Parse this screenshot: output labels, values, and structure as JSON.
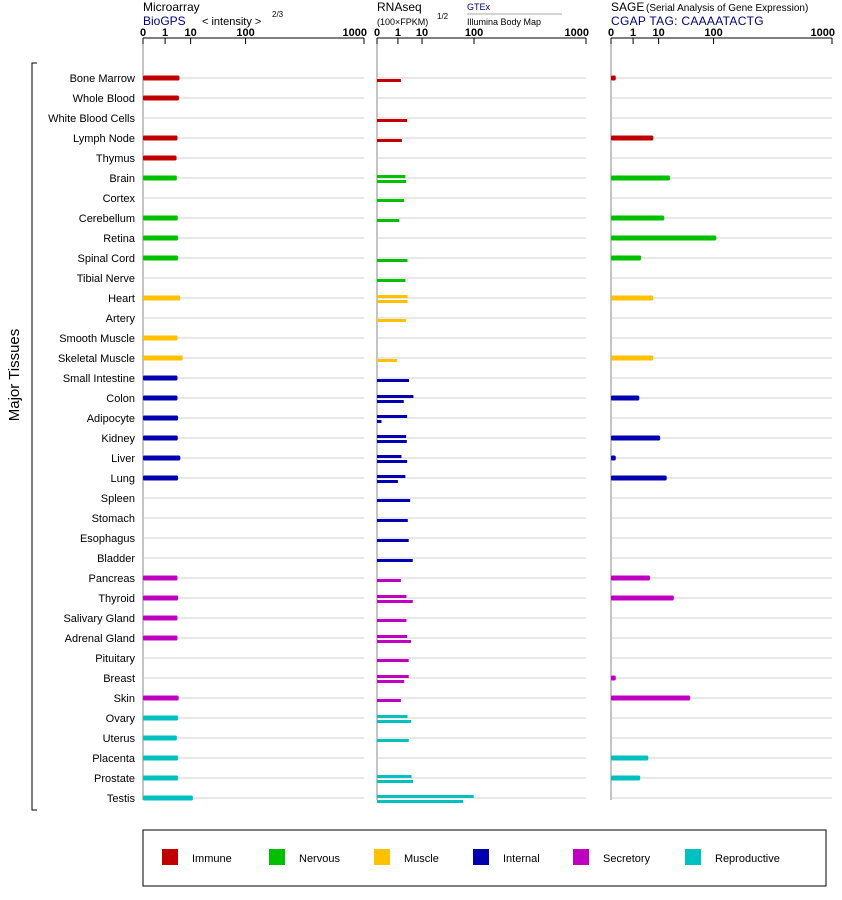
{
  "panels": {
    "microarray": {
      "title": "Microarray",
      "link": "BioGPS",
      "subtitle": "< intensity >",
      "subtitle_exp": "2/3"
    },
    "rnaseq": {
      "title": "RNAseq",
      "unit": "(100×FPKM)",
      "unit_exp": "1/2",
      "source_top": "GTEx",
      "source_bottom": "Illumina Body Map"
    },
    "sage": {
      "title": "SAGE",
      "title_note": "(Serial Analysis of Gene Expression)",
      "tag": "CGAP TAG: CAAAATACTG"
    }
  },
  "y_axis_label": "Major Tissues",
  "tick_labels": [
    "0",
    "1",
    "10",
    "100",
    "1000"
  ],
  "colors": {
    "Immune": "#c00000",
    "Nervous": "#00c000",
    "Muscle": "#ffc000",
    "Internal": "#0000b0",
    "Secretory": "#c000c0",
    "Reproductive": "#00c0c0",
    "row_line": "#d0d0d0"
  },
  "legend": [
    {
      "label": "Immune",
      "color": "#c00000"
    },
    {
      "label": "Nervous",
      "color": "#00c000"
    },
    {
      "label": "Muscle",
      "color": "#ffc000"
    },
    {
      "label": "Internal",
      "color": "#0000b0"
    },
    {
      "label": "Secretory",
      "color": "#c000c0"
    },
    {
      "label": "Reproductive",
      "color": "#00c0c0"
    }
  ],
  "chart_data": {
    "type": "bar",
    "orientation": "horizontal",
    "axis_scale": "power 1/3 (cube-root) axis",
    "xlim": [
      0,
      1000
    ],
    "x_ticks": [
      0,
      1,
      10,
      100,
      1000
    ],
    "categories": [
      "Bone Marrow",
      "Whole Blood",
      "White Blood Cells",
      "Lymph Node",
      "Thymus",
      "Brain",
      "Cortex",
      "Cerebellum",
      "Retina",
      "Spinal Cord",
      "Tibial Nerve",
      "Heart",
      "Artery",
      "Smooth Muscle",
      "Skeletal Muscle",
      "Small Intestine",
      "Colon",
      "Adipocyte",
      "Kidney",
      "Liver",
      "Lung",
      "Spleen",
      "Stomach",
      "Esophagus",
      "Bladder",
      "Pancreas",
      "Thyroid",
      "Salivary Gland",
      "Adrenal Gland",
      "Pituitary",
      "Breast",
      "Skin",
      "Ovary",
      "Uterus",
      "Placenta",
      "Prostate",
      "Testis"
    ],
    "groups": [
      "Immune",
      "Immune",
      "Immune",
      "Immune",
      "Immune",
      "Nervous",
      "Nervous",
      "Nervous",
      "Nervous",
      "Nervous",
      "Nervous",
      "Muscle",
      "Muscle",
      "Muscle",
      "Muscle",
      "Internal",
      "Internal",
      "Internal",
      "Internal",
      "Internal",
      "Internal",
      "Internal",
      "Internal",
      "Internal",
      "Internal",
      "Secretory",
      "Secretory",
      "Secretory",
      "Secretory",
      "Secretory",
      "Secretory",
      "Secretory",
      "Reproductive",
      "Reproductive",
      "Reproductive",
      "Reproductive",
      "Reproductive"
    ],
    "series": [
      {
        "name": "Microarray",
        "values": [
          4.5,
          4.3,
          null,
          3.8,
          3.5,
          3.6,
          null,
          3.9,
          4.0,
          4.0,
          null,
          4.8,
          null,
          3.8,
          5.8,
          3.8,
          3.8,
          4.0,
          3.9,
          4.8,
          4.0,
          null,
          null,
          null,
          null,
          3.8,
          4.0,
          3.8,
          3.8,
          null,
          null,
          4.2,
          4.0,
          3.6,
          4.0,
          4.0,
          11.5
        ]
      },
      {
        "name": "GTEx",
        "values": [
          1.5,
          null,
          3.0,
          1.7,
          null,
          2.5,
          2.2,
          1.2,
          null,
          3.1,
          2.5,
          3.1,
          2.7,
          null,
          0.9,
          3.6,
          5.3,
          3.0,
          2.7,
          1.6,
          2.5,
          4.0,
          3.2,
          3.5,
          5.0,
          1.5,
          2.8,
          2.8,
          3.0,
          3.5,
          3.5,
          1.5,
          3.1,
          3.5,
          null,
          4.5,
          99
        ]
      },
      {
        "name": "Illumina Body Map",
        "values": [
          null,
          null,
          null,
          null,
          null,
          2.7,
          null,
          null,
          null,
          null,
          null,
          3.1,
          null,
          null,
          null,
          null,
          2.1,
          0.01,
          2.9,
          3.0,
          1.0,
          null,
          null,
          null,
          null,
          null,
          5.0,
          null,
          4.3,
          null,
          2.2,
          null,
          4.3,
          null,
          null,
          5.1,
          70
        ]
      },
      {
        "name": "SAGE",
        "values": [
          0.01,
          null,
          null,
          7.0,
          null,
          19,
          null,
          14,
          108,
          2.5,
          null,
          7.0,
          null,
          null,
          7.0,
          null,
          2.1,
          null,
          11,
          0.01,
          16,
          null,
          null,
          null,
          null,
          5.5,
          23,
          null,
          null,
          null,
          0.01,
          46,
          null,
          null,
          4.8,
          2.3,
          null
        ]
      }
    ]
  }
}
